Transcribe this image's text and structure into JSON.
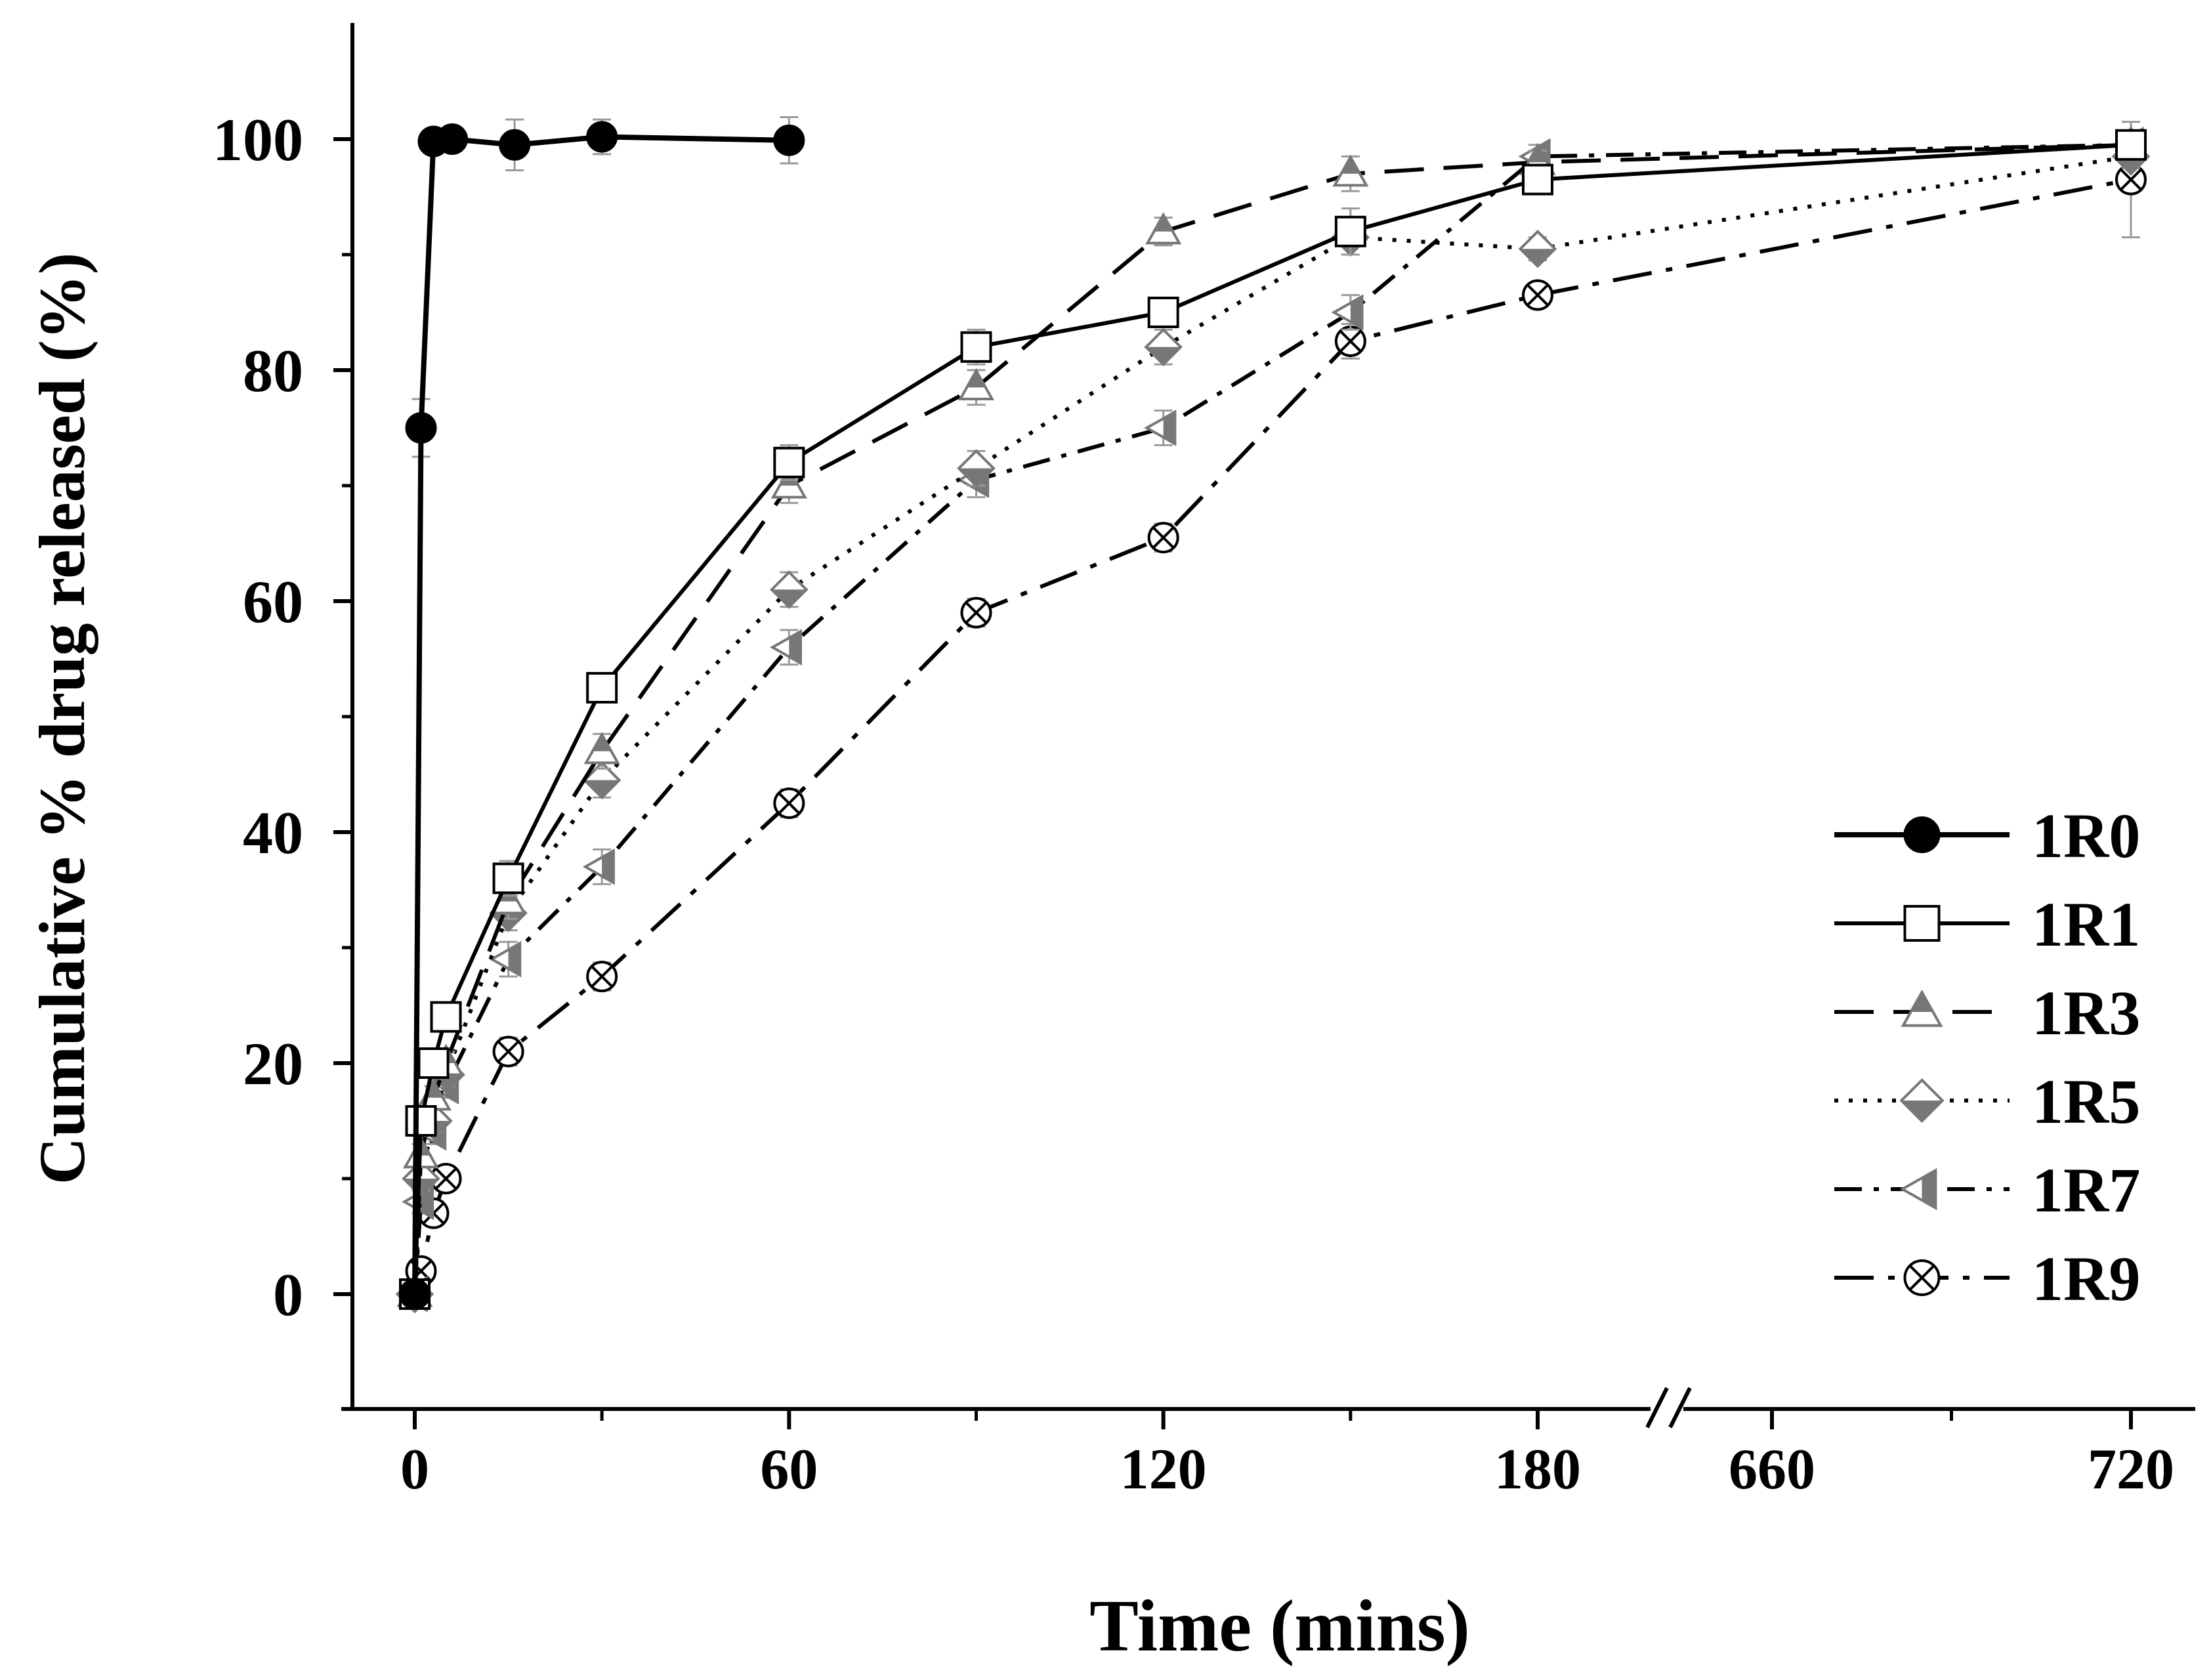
{
  "chart_data": {
    "type": "line",
    "title": "",
    "xlabel": "Time (mins)",
    "ylabel": "Cumulative % drug released (%)",
    "ylim": [
      -10,
      110
    ],
    "y_ticks": [
      0,
      20,
      40,
      60,
      80,
      100
    ],
    "x_ticks": [
      {
        "value": 0,
        "label": "0"
      },
      {
        "value": 60,
        "label": "60"
      },
      {
        "value": 120,
        "label": "120"
      },
      {
        "value": 180,
        "label": "180"
      },
      {
        "value": 660,
        "label": "660"
      },
      {
        "value": 720,
        "label": "720"
      }
    ],
    "x_axis_break": {
      "from": 180,
      "to": 660
    },
    "legend_position": "bottom-right",
    "series": [
      {
        "name": "1R0",
        "marker": "filled-circle",
        "dash": "solid",
        "x": [
          0,
          1,
          3,
          6,
          16,
          30,
          60
        ],
        "values": [
          0,
          75,
          99.8,
          100,
          99.5,
          100.2,
          99.9
        ],
        "errors": [
          0,
          2.5,
          1.0,
          0.8,
          2.2,
          1.5,
          2.0
        ]
      },
      {
        "name": "1R1",
        "marker": "open-square",
        "dash": "solid",
        "x": [
          0,
          1,
          3,
          5,
          15,
          30,
          60,
          90,
          120,
          150,
          180,
          720
        ],
        "values": [
          0,
          15,
          20,
          24,
          36,
          52.5,
          72,
          82,
          85,
          92,
          96.5,
          99.5
        ],
        "errors": [
          0,
          1,
          1,
          1,
          1.5,
          1,
          1.5,
          1.5,
          1,
          2,
          1,
          1
        ]
      },
      {
        "name": "1R3",
        "marker": "half-triangle",
        "dash": "dashed",
        "x": [
          0,
          1,
          3,
          5,
          15,
          30,
          60,
          90,
          120,
          150,
          180,
          720
        ],
        "values": [
          0,
          12,
          17,
          20,
          34,
          47,
          70,
          78.5,
          92,
          97,
          98,
          99.5
        ],
        "errors": [
          0,
          1,
          1,
          1,
          1.5,
          1.5,
          1.5,
          1.5,
          1.2,
          1.5,
          1,
          1
        ]
      },
      {
        "name": "1R5",
        "marker": "half-diamond",
        "dash": "dotted",
        "x": [
          0,
          1,
          3,
          5,
          15,
          30,
          60,
          90,
          120,
          150,
          180,
          720
        ],
        "values": [
          0,
          10,
          15,
          19,
          33,
          44.5,
          61,
          71.5,
          82,
          91.5,
          90.5,
          98.5
        ],
        "errors": [
          0,
          1,
          1,
          1,
          1.5,
          1.5,
          1.5,
          1.5,
          1.5,
          1.5,
          1,
          1
        ]
      },
      {
        "name": "1R7",
        "marker": "half-left-triangle",
        "dash": "dash-dot",
        "x": [
          0,
          1,
          3,
          5,
          15,
          30,
          60,
          90,
          120,
          150,
          180,
          720
        ],
        "values": [
          0,
          8,
          14,
          18,
          29,
          37,
          56,
          70.5,
          75,
          85,
          98.5,
          99.5
        ],
        "errors": [
          0,
          1,
          1,
          1,
          1.5,
          1.5,
          1.5,
          1.5,
          1.5,
          1.5,
          1,
          1
        ]
      },
      {
        "name": "1R9",
        "marker": "crossed-circle",
        "dash": "long-dash-dot",
        "x": [
          0,
          1,
          3,
          5,
          15,
          30,
          60,
          90,
          120,
          150,
          180,
          720
        ],
        "values": [
          0,
          2,
          7,
          10,
          21,
          27.5,
          42.5,
          59,
          65.5,
          82.5,
          86.5,
          96.5
        ],
        "errors": [
          0,
          1,
          1,
          1,
          1.2,
          1.2,
          1.2,
          1.2,
          1.2,
          1.5,
          1,
          5
        ]
      }
    ]
  }
}
